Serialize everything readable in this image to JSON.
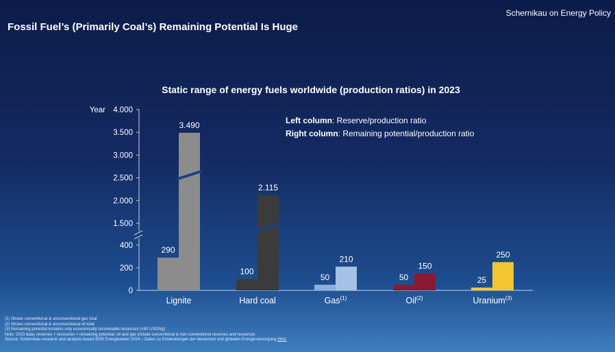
{
  "header": {
    "title": "Fossil Fuel’s (Primarily Coal’s) Remaining Potential Is Huge",
    "brand": "Schernikau on Energy Policy"
  },
  "legend": {
    "left_label": "Left column",
    "left_text": ": Reserve/production ratio",
    "right_label": "Right column",
    "right_text": ": Remaining potential/production ratio"
  },
  "footnotes": {
    "note1": "(1) Shows conventional & unconventional gas total",
    "note2": "(2) Shows conventional & unconventional oil total",
    "note3": "(3) Remaining potential includes only economically recoverable resources (<80 USD/kg)",
    "note4": "Note: 2023 data; reserves + resources = remaining potential; oil and gas include conventional & non-conventional reserves and resources",
    "source": "Source: Schernikau research and analysis based BGR Energiedaten 2024 – Daten zu Entwicklungen der deutschen und globalen Energieversorgung",
    "link": "(link)"
  },
  "chart_data": {
    "type": "bar",
    "title": "Static range of energy fuels worldwide (production ratios) in 2023",
    "ylabel": "Year",
    "y_axis_broken": true,
    "y_ticks_lower": [
      "0",
      "200",
      "400"
    ],
    "y_ticks_upper": [
      "1.500",
      "2.000",
      "2.500",
      "3.000",
      "3.500",
      "4.000"
    ],
    "categories": [
      "Lignite",
      "Hard coal",
      "Gas",
      "Oil",
      "Uranium"
    ],
    "category_superscripts": [
      "",
      "",
      "(1)",
      "(2)",
      "(3)"
    ],
    "series": [
      {
        "name": "Left column: Reserve/production ratio",
        "values": [
          290,
          100,
          50,
          50,
          25
        ],
        "value_labels": [
          "290",
          "100",
          "50",
          "50",
          "25"
        ]
      },
      {
        "name": "Right column: Remaining potential/production ratio",
        "values": [
          3490,
          2115,
          210,
          150,
          250
        ],
        "value_labels": [
          "3.490",
          "2.115",
          "210",
          "150",
          "250"
        ]
      }
    ],
    "colors": {
      "Lignite": [
        "#8c8c8c",
        "#8c8c8c"
      ],
      "Hard coal": [
        "#3b3b3b",
        "#3b3b3b"
      ],
      "Gas": [
        "#8fb0dc",
        "#a6c1e6"
      ],
      "Oil": [
        "#8a1a33",
        "#8a1a33"
      ],
      "Uranium": [
        "#f2c531",
        "#f2c531"
      ]
    },
    "legend_placement": "top-right",
    "grid": false
  }
}
